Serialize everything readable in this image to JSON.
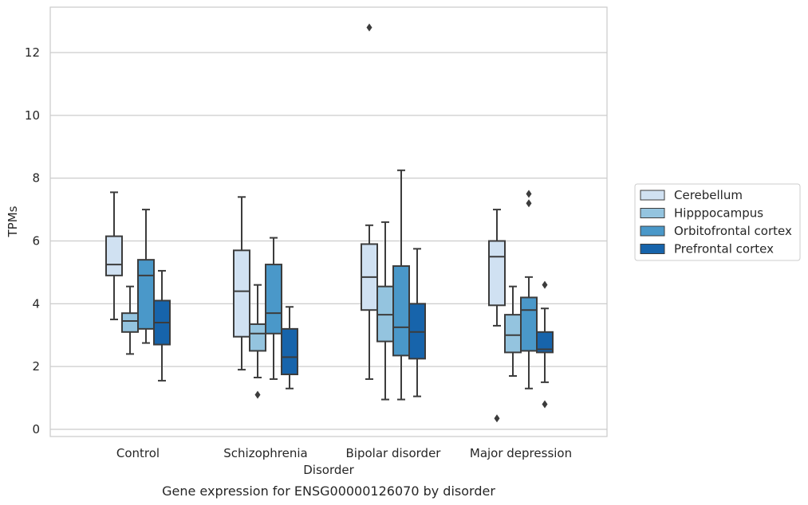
{
  "chart_data": {
    "type": "box",
    "title": "",
    "caption": "Gene expression for ENSG00000126070 by disorder",
    "xlabel": "Disorder",
    "ylabel": "TPMs",
    "ylim": [
      -0.2,
      13.3
    ],
    "yticks": [
      0,
      2,
      4,
      6,
      8,
      10,
      12
    ],
    "grid": "horizontal",
    "legend_position": "right",
    "categories": [
      "Control",
      "Schizophrenia",
      "Bipolar disorder",
      "Major depression"
    ],
    "series": [
      {
        "name": "Cerebellum",
        "color": "#d0e1f2",
        "boxes": [
          {
            "whisker_low": 3.5,
            "q1": 4.9,
            "median": 5.25,
            "q3": 6.15,
            "whisker_high": 7.55,
            "outliers": []
          },
          {
            "whisker_low": 1.9,
            "q1": 2.95,
            "median": 4.4,
            "q3": 5.7,
            "whisker_high": 7.4,
            "outliers": []
          },
          {
            "whisker_low": 1.6,
            "q1": 3.8,
            "median": 4.85,
            "q3": 5.9,
            "whisker_high": 6.5,
            "outliers": [
              12.8
            ]
          },
          {
            "whisker_low": 3.3,
            "q1": 3.95,
            "median": 5.5,
            "q3": 6.0,
            "whisker_high": 7.0,
            "outliers": [
              0.35
            ]
          }
        ]
      },
      {
        "name": "Hipppocampus",
        "color": "#94c4df",
        "boxes": [
          {
            "whisker_low": 2.4,
            "q1": 3.1,
            "median": 3.45,
            "q3": 3.7,
            "whisker_high": 4.55,
            "outliers": []
          },
          {
            "whisker_low": 1.65,
            "q1": 2.5,
            "median": 3.05,
            "q3": 3.35,
            "whisker_high": 4.6,
            "outliers": [
              1.1
            ]
          },
          {
            "whisker_low": 0.95,
            "q1": 2.8,
            "median": 3.65,
            "q3": 4.55,
            "whisker_high": 6.6,
            "outliers": []
          },
          {
            "whisker_low": 1.7,
            "q1": 2.45,
            "median": 3.0,
            "q3": 3.65,
            "whisker_high": 4.55,
            "outliers": []
          }
        ]
      },
      {
        "name": "Orbitofrontal cortex",
        "color": "#4a98c9",
        "boxes": [
          {
            "whisker_low": 2.75,
            "q1": 3.2,
            "median": 4.9,
            "q3": 5.4,
            "whisker_high": 7.0,
            "outliers": []
          },
          {
            "whisker_low": 1.6,
            "q1": 3.05,
            "median": 3.7,
            "q3": 5.25,
            "whisker_high": 6.1,
            "outliers": []
          },
          {
            "whisker_low": 0.95,
            "q1": 2.35,
            "median": 3.25,
            "q3": 5.2,
            "whisker_high": 8.25,
            "outliers": []
          },
          {
            "whisker_low": 1.3,
            "q1": 2.5,
            "median": 3.8,
            "q3": 4.2,
            "whisker_high": 4.85,
            "outliers": [
              7.2,
              7.5
            ]
          }
        ]
      },
      {
        "name": "Prefrontal cortex",
        "color": "#1764ab",
        "boxes": [
          {
            "whisker_low": 1.55,
            "q1": 2.7,
            "median": 3.4,
            "q3": 4.1,
            "whisker_high": 5.05,
            "outliers": []
          },
          {
            "whisker_low": 1.3,
            "q1": 1.75,
            "median": 2.3,
            "q3": 3.2,
            "whisker_high": 3.9,
            "outliers": []
          },
          {
            "whisker_low": 1.05,
            "q1": 2.25,
            "median": 3.1,
            "q3": 4.0,
            "whisker_high": 5.75,
            "outliers": []
          },
          {
            "whisker_low": 1.5,
            "q1": 2.45,
            "median": 2.55,
            "q3": 3.1,
            "whisker_high": 3.85,
            "outliers": [
              0.8,
              4.6
            ]
          }
        ]
      }
    ]
  }
}
